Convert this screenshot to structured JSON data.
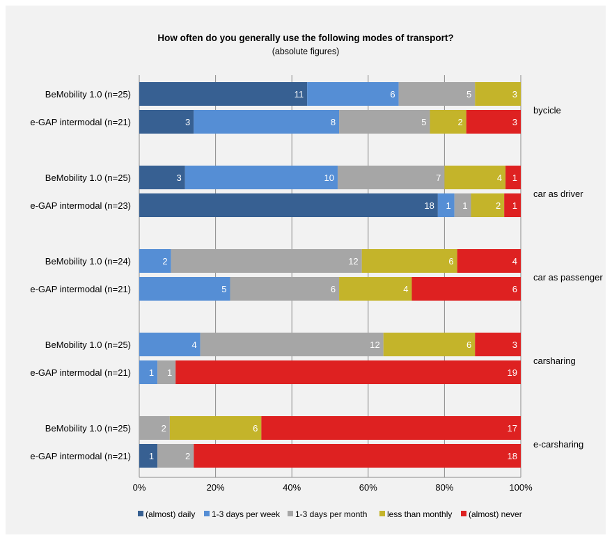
{
  "chart_data": {
    "type": "bar",
    "orientation": "horizontal",
    "stacked": "percent",
    "title": "How often do you generally use the following modes of transport?",
    "subtitle": "(absolute figures)",
    "xlim": [
      0,
      100
    ],
    "x_ticks": [
      "0%",
      "20%",
      "40%",
      "60%",
      "80%",
      "100%"
    ],
    "grid": "vertical",
    "legend_position": "bottom",
    "series": [
      {
        "name": "(almost) daily",
        "color": "#376092"
      },
      {
        "name": "1-3 days per week",
        "color": "#558ed5"
      },
      {
        "name": "1-3 days per month",
        "color": "#a6a6a6"
      },
      {
        "name": "less than monthly",
        "color": "#c4b42a"
      },
      {
        "name": "(almost) never",
        "color": "#de2121"
      }
    ],
    "groups": [
      {
        "label": "bycicle",
        "bars": [
          {
            "label": "BeMobility 1.0 (n=25)",
            "values": [
              11,
              6,
              5,
              3,
              0
            ]
          },
          {
            "label": "e-GAP intermodal (n=21)",
            "values": [
              3,
              8,
              5,
              2,
              3
            ]
          }
        ]
      },
      {
        "label": "car as driver",
        "bars": [
          {
            "label": "BeMobility 1.0 (n=25)",
            "values": [
              3,
              10,
              7,
              4,
              1
            ]
          },
          {
            "label": "e-GAP intermodal (n=23)",
            "values": [
              18,
              1,
              1,
              2,
              1
            ]
          }
        ]
      },
      {
        "label": "car as passenger",
        "bars": [
          {
            "label": "BeMobility 1.0 (n=24)",
            "values": [
              0,
              2,
              12,
              6,
              4
            ]
          },
          {
            "label": "e-GAP intermodal (n=21)",
            "values": [
              0,
              5,
              6,
              4,
              6
            ]
          }
        ]
      },
      {
        "label": "carsharing",
        "bars": [
          {
            "label": "BeMobility 1.0 (n=25)",
            "values": [
              0,
              4,
              12,
              6,
              3
            ]
          },
          {
            "label": "e-GAP intermodal (n=21)",
            "values": [
              0,
              1,
              1,
              0,
              19
            ]
          }
        ]
      },
      {
        "label": "e-carsharing",
        "bars": [
          {
            "label": "BeMobility 1.0 (n=25)",
            "values": [
              0,
              0,
              2,
              6,
              17
            ]
          },
          {
            "label": "e-GAP intermodal (n=21)",
            "values": [
              1,
              0,
              2,
              0,
              18
            ]
          }
        ]
      }
    ]
  }
}
